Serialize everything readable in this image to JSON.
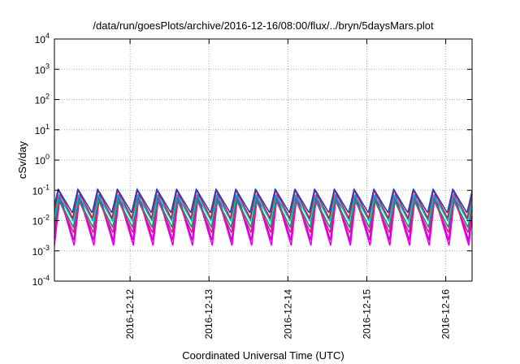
{
  "chart_data": {
    "type": "line",
    "title": "/data/run/goesPlots/archive/2016-12-16/08:00/flux/../bryn/5daysMars.plot",
    "xlabel": "Coordinated Universal Time (UTC)",
    "ylabel": "cSv/day",
    "yscale": "log",
    "ylim": [
      0.0001,
      10000
    ],
    "yticks": [
      {
        "value": 10000,
        "base": "10",
        "exp": "4"
      },
      {
        "value": 1000,
        "base": "10",
        "exp": "3"
      },
      {
        "value": 100,
        "base": "10",
        "exp": "2"
      },
      {
        "value": 10,
        "base": "10",
        "exp": "1"
      },
      {
        "value": 1,
        "base": "10",
        "exp": "0"
      },
      {
        "value": 0.1,
        "base": "10",
        "exp": "-1"
      },
      {
        "value": 0.01,
        "base": "10",
        "exp": "-2"
      },
      {
        "value": 0.001,
        "base": "10",
        "exp": "-3"
      },
      {
        "value": 0.0001,
        "base": "10",
        "exp": "-4"
      }
    ],
    "xlim": [
      "2016-12-11T01:00",
      "2016-12-16T08:00"
    ],
    "xticks": [
      "2016-12-12",
      "2016-12-13",
      "2016-12-14",
      "2016-12-15",
      "2016-12-16"
    ],
    "grid": true,
    "oscillation_period_hours": 6,
    "series": [
      {
        "color": "#ee00ee",
        "peak": 0.06,
        "trough": 0.0015
      },
      {
        "color": "#d400d4",
        "peak": 0.075,
        "trough": 0.0022
      },
      {
        "color": "#e0207a",
        "peak": 0.045,
        "trough": 0.004
      },
      {
        "color": "#009e73",
        "peak": 0.05,
        "trough": 0.006
      },
      {
        "color": "#00b0e0",
        "peak": 0.07,
        "trough": 0.01
      },
      {
        "color": "#d02020",
        "peak": 0.1,
        "trough": 0.012
      },
      {
        "color": "#1f40d0",
        "peak": 0.11,
        "trough": 0.018
      }
    ]
  }
}
